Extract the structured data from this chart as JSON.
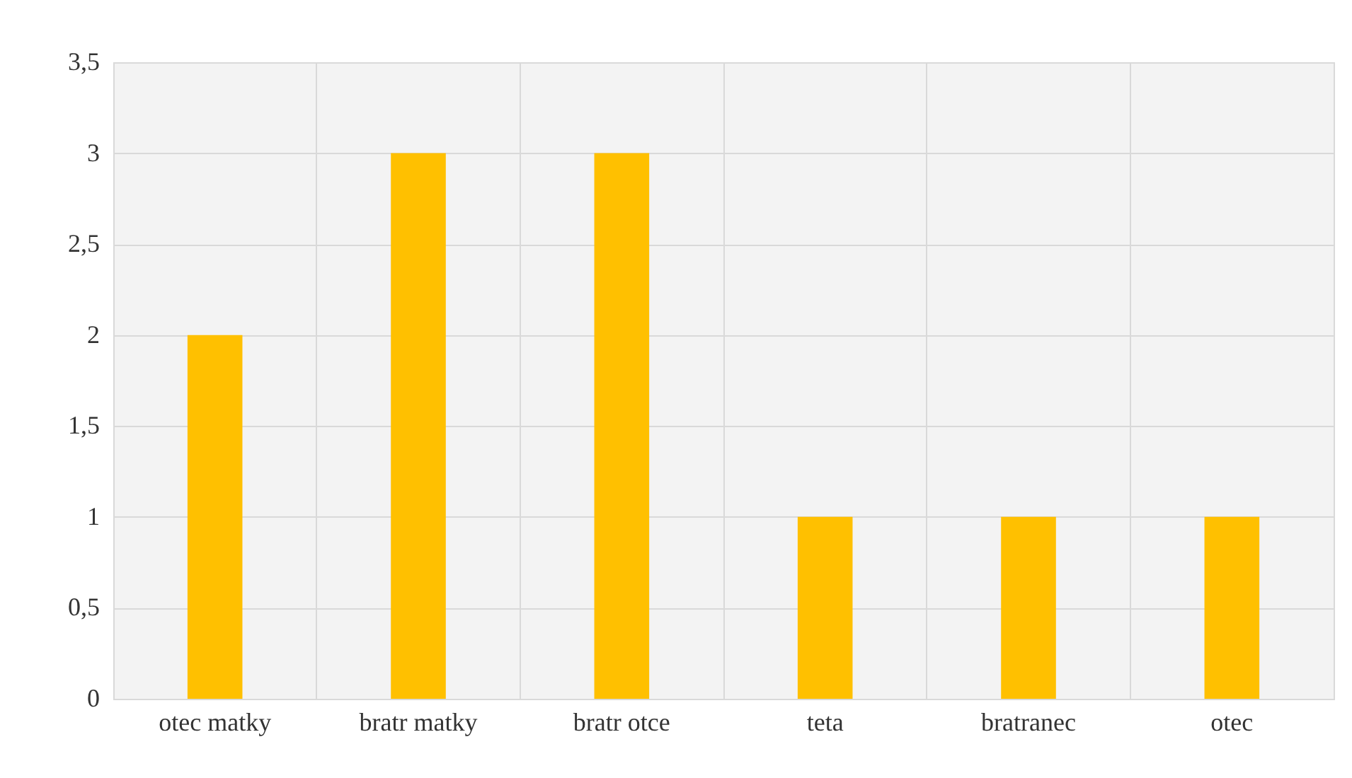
{
  "chart_data": {
    "type": "bar",
    "categories": [
      "otec matky",
      "bratr matky",
      "bratr otce",
      "teta",
      "bratranec",
      "otec"
    ],
    "values": [
      2,
      3,
      3,
      1,
      1,
      1
    ],
    "color": "#ffc000",
    "ylim": [
      0,
      3.5
    ],
    "yticks": [
      0,
      {
        "value": 0.5,
        "label": "0,5"
      },
      1,
      {
        "value": 1.5,
        "label": "1,5"
      },
      2,
      {
        "value": 2.5,
        "label": "2,5"
      },
      3,
      {
        "value": 3.5,
        "label": "3,5"
      }
    ],
    "grid": true
  }
}
